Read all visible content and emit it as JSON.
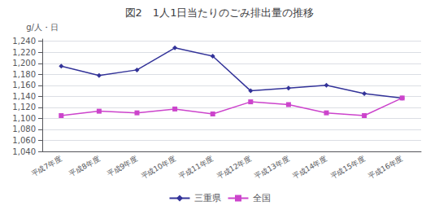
{
  "chart_data": {
    "type": "line",
    "title": "図2　1人1日当たりのごみ排出量の推移",
    "ylabel": "g/人・日",
    "categories": [
      "平成7年度",
      "平成8年度",
      "平成9年度",
      "平成10年度",
      "平成11年度",
      "平成12年度",
      "平成13年度",
      "平成14年度",
      "平成15年度",
      "平成16年度"
    ],
    "series": [
      {
        "name": "三重県",
        "color": "#333399",
        "marker": "diamond",
        "line_style": "solid",
        "values": [
          1195,
          1178,
          1188,
          1228,
          1213,
          1150,
          1155,
          1160,
          1145,
          1137
        ]
      },
      {
        "name": "全国",
        "color": "#cc44cc",
        "marker": "square",
        "line_style": "solid",
        "values": [
          1105,
          1113,
          1110,
          1117,
          1108,
          1130,
          1125,
          1110,
          1105,
          1137
        ]
      }
    ],
    "ylim": [
      1040,
      1244
    ],
    "yticks": [
      {
        "value": 1040,
        "label": "1,040"
      },
      {
        "value": 1060,
        "label": "1,060"
      },
      {
        "value": 1080,
        "label": "1,080"
      },
      {
        "value": 1100,
        "label": "1,100"
      },
      {
        "value": 1120,
        "label": "1,120"
      },
      {
        "value": 1140,
        "label": "1,140"
      },
      {
        "value": 1160,
        "label": "1,160"
      },
      {
        "value": 1180,
        "label": "1,180"
      },
      {
        "value": 1200,
        "label": "1,200"
      },
      {
        "value": 1220,
        "label": "1,220"
      },
      {
        "value": 1240,
        "label": "1,240"
      }
    ],
    "grid": true,
    "legend": "bottom"
  }
}
